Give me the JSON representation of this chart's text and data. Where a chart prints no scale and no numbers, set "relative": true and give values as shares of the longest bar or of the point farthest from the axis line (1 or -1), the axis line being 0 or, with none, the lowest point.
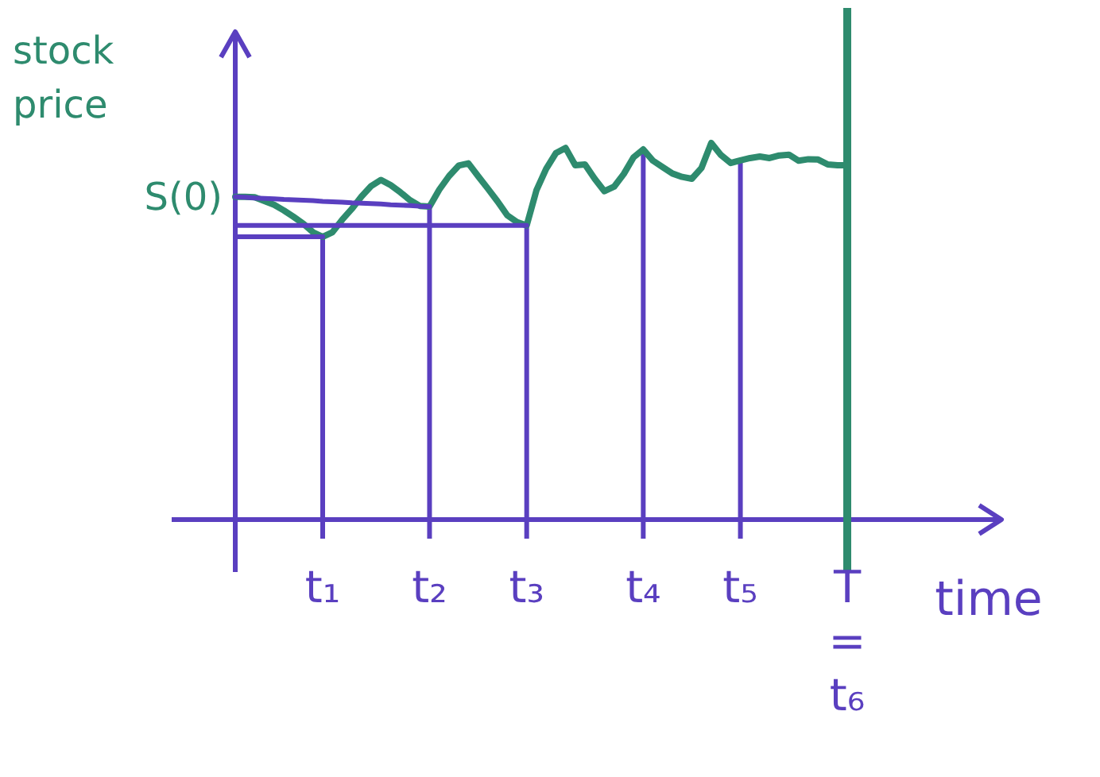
{
  "chart_data": {
    "type": "line",
    "relative": true,
    "xlabel": "time",
    "ylabel": "stock price",
    "categories": [
      null,
      null,
      null,
      null,
      null,
      null,
      null,
      null,
      null,
      "t₁",
      null,
      null,
      null,
      null,
      null,
      null,
      null,
      null,
      null,
      null,
      "t₂",
      null,
      null,
      null,
      null,
      null,
      null,
      null,
      null,
      null,
      "t₃",
      null,
      null,
      null,
      null,
      null,
      null,
      null,
      null,
      null,
      null,
      null,
      "t₄",
      null,
      null,
      null,
      null,
      null,
      null,
      null,
      null,
      null,
      "t₅",
      null,
      null,
      null,
      null,
      null,
      null,
      null,
      null,
      null,
      null,
      "T = t₆"
    ],
    "annotations": [
      "S(0)"
    ],
    "ref_lines": [
      {
        "axis": "x",
        "value": "T = t₆",
        "color": "#2e8b6e"
      },
      {
        "axis": "x",
        "value": "t₁"
      },
      {
        "axis": "x",
        "value": "t₂"
      },
      {
        "axis": "x",
        "value": "t₃"
      },
      {
        "axis": "x",
        "value": "t₄"
      },
      {
        "axis": "x",
        "value": "t₅"
      }
    ],
    "series": [
      {
        "type": "line",
        "color": "#2e8b6e",
        "values": [
          0.857,
          0.857,
          0.856,
          0.846,
          0.836,
          0.821,
          0.804,
          0.786,
          0.763,
          0.751,
          0.763,
          0.796,
          0.825,
          0.858,
          0.886,
          0.902,
          0.888,
          0.869,
          0.848,
          0.833,
          0.831,
          0.876,
          0.912,
          0.94,
          0.946,
          0.912,
          0.879,
          0.845,
          0.808,
          0.79,
          0.781,
          0.874,
          0.931,
          0.973,
          0.987,
          0.941,
          0.943,
          0.905,
          0.872,
          0.884,
          0.918,
          0.962,
          0.983,
          0.953,
          0.936,
          0.919,
          0.91,
          0.905,
          0.934,
          1,
          0.968,
          0.947,
          0.954,
          0.96,
          0.964,
          0.96,
          0.967,
          0.969,
          0.953,
          0.957,
          0.956,
          0.943,
          0.941,
          0.941
        ]
      },
      {
        "type": "line",
        "color": "#5a3fc0",
        "values": [
          0.857,
          0.856,
          0.854,
          0.853,
          0.852,
          0.85,
          0.849,
          0.848,
          0.847,
          0.845,
          0.844,
          0.843,
          0.841,
          0.84,
          0.839,
          0.838,
          0.836,
          0.835,
          0.834,
          0.832,
          0.831,
          null,
          null,
          null,
          null,
          null,
          null,
          null,
          null,
          null,
          null,
          null,
          null,
          null,
          null,
          null,
          null,
          null,
          null,
          null,
          null,
          null,
          null,
          null,
          null,
          null,
          null,
          null,
          null,
          null,
          null,
          null,
          null,
          null,
          null,
          null,
          null,
          null,
          null,
          null,
          null,
          null,
          null,
          null
        ]
      },
      {
        "type": "line",
        "color": "#5a3fc0",
        "values": [
          0.781,
          0.781,
          0.781,
          0.781,
          0.781,
          0.781,
          0.781,
          0.781,
          0.781,
          0.781,
          0.781,
          0.781,
          0.781,
          0.781,
          0.781,
          0.781,
          0.781,
          0.781,
          0.781,
          0.781,
          0.781,
          0.781,
          0.781,
          0.781,
          0.781,
          0.781,
          0.781,
          0.781,
          0.781,
          0.781,
          0.781,
          null,
          null,
          null,
          null,
          null,
          null,
          null,
          null,
          null,
          null,
          null,
          null,
          null,
          null,
          null,
          null,
          null,
          null,
          null,
          null,
          null,
          null,
          null,
          null,
          null,
          null,
          null,
          null,
          null,
          null,
          null,
          null,
          null
        ]
      },
      {
        "type": "line",
        "color": "#5a3fc0",
        "values": [
          0.751,
          0.751,
          0.751,
          0.751,
          0.751,
          0.751,
          0.751,
          0.751,
          0.751,
          0.751,
          null,
          null,
          null,
          null,
          null,
          null,
          null,
          null,
          null,
          null,
          null,
          null,
          null,
          null,
          null,
          null,
          null,
          null,
          null,
          null,
          null,
          null,
          null,
          null,
          null,
          null,
          null,
          null,
          null,
          null,
          null,
          null,
          null,
          null,
          null,
          null,
          null,
          null,
          null,
          null,
          null,
          null,
          null,
          null,
          null,
          null,
          null,
          null,
          null,
          null,
          null,
          null,
          null,
          null
        ]
      }
    ]
  }
}
